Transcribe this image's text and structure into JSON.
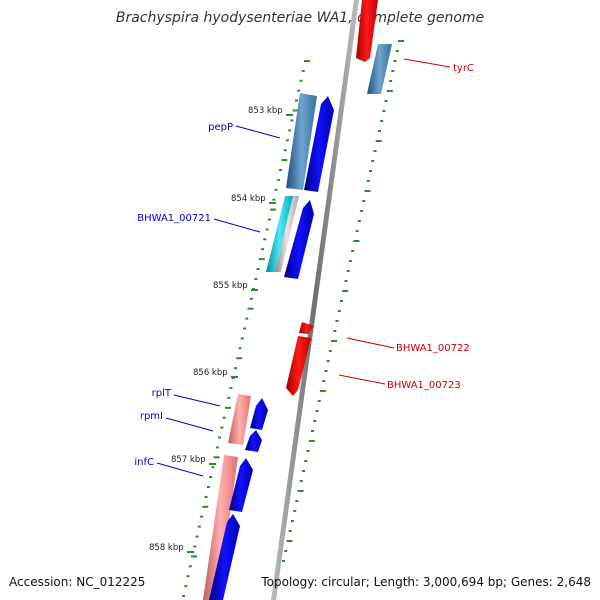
{
  "title": "Brachyspira hyodysenteriae WA1, complete genome",
  "footer": {
    "accession": "Accession: NC_012225",
    "summary": "Topology: circular; Length: 3,000,694 bp; Genes: 2,648"
  },
  "colors": {
    "backbone": "#8a8a8a",
    "gene_forward": "#0000ee",
    "gene_reverse": "#ee0000",
    "cds_blue": "#4682b4",
    "trna_cyan": "#00bcd4",
    "rrna_pink": "#f08080",
    "tick": "#2e8b2e",
    "label_blue": "#0000cc",
    "label_red": "#cc0000"
  },
  "ticks": [
    {
      "label": "853 kbp"
    },
    {
      "label": "854 kbp"
    },
    {
      "label": "855 kbp"
    },
    {
      "label": "856 kbp"
    },
    {
      "label": "857 kbp"
    },
    {
      "label": "858 kbp"
    }
  ],
  "gene_labels": [
    {
      "name": "tyrC",
      "strand": "reverse"
    },
    {
      "name": "pepP",
      "strand": "forward"
    },
    {
      "name": "BHWA1_00721",
      "strand": "forward"
    },
    {
      "name": "BHWA1_00722",
      "strand": "reverse"
    },
    {
      "name": "BHWA1_00723",
      "strand": "reverse"
    },
    {
      "name": "rplT",
      "strand": "forward"
    },
    {
      "name": "rpmI",
      "strand": "forward"
    },
    {
      "name": "infC",
      "strand": "forward"
    }
  ]
}
